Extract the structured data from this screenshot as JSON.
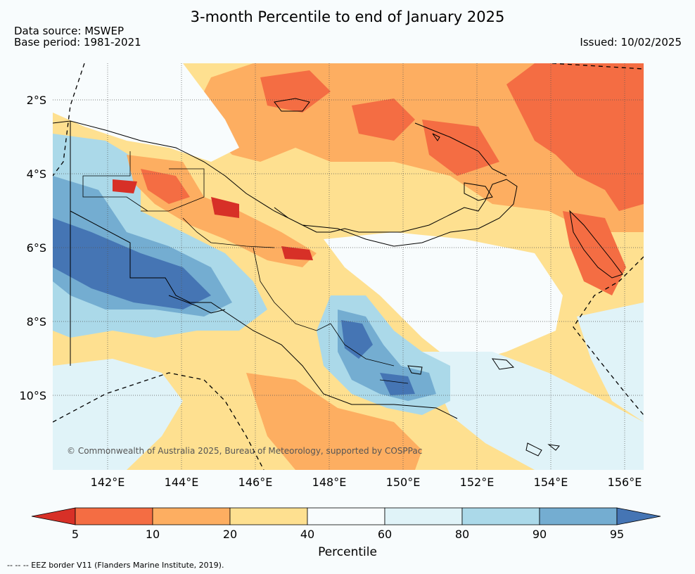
{
  "header": {
    "title": "3-month Percentile to end of January 2025",
    "data_source": "Data source: MSWEP",
    "base_period": "Base period: 1981-2021",
    "issued": "Issued: 10/02/2025"
  },
  "map": {
    "lon_ticks": [
      "142°E",
      "144°E",
      "146°E",
      "148°E",
      "150°E",
      "152°E",
      "154°E",
      "156°E"
    ],
    "lat_ticks": [
      "2°S",
      "4°S",
      "6°S",
      "8°S",
      "10°S"
    ],
    "copyright": "© Commonwealth of Australia 2025, Bureau of Meteorology, supported by COSPPac"
  },
  "colorbar": {
    "label": "Percentile",
    "ticks": [
      "5",
      "10",
      "20",
      "40",
      "60",
      "80",
      "90",
      "95"
    ],
    "colors": {
      "below_5": "#d73027",
      "5_10": "#f46d43",
      "10_20": "#fdae61",
      "20_40": "#fee090",
      "40_60": "#f8fcfd",
      "60_80": "#e0f3f8",
      "80_90": "#abd9e9",
      "90_95": "#74add1",
      "above_95": "#4575b4"
    }
  },
  "footer": {
    "eez_note": "--  --  -- EEZ border V11 (Flanders Marine Institute, 2019)."
  }
}
